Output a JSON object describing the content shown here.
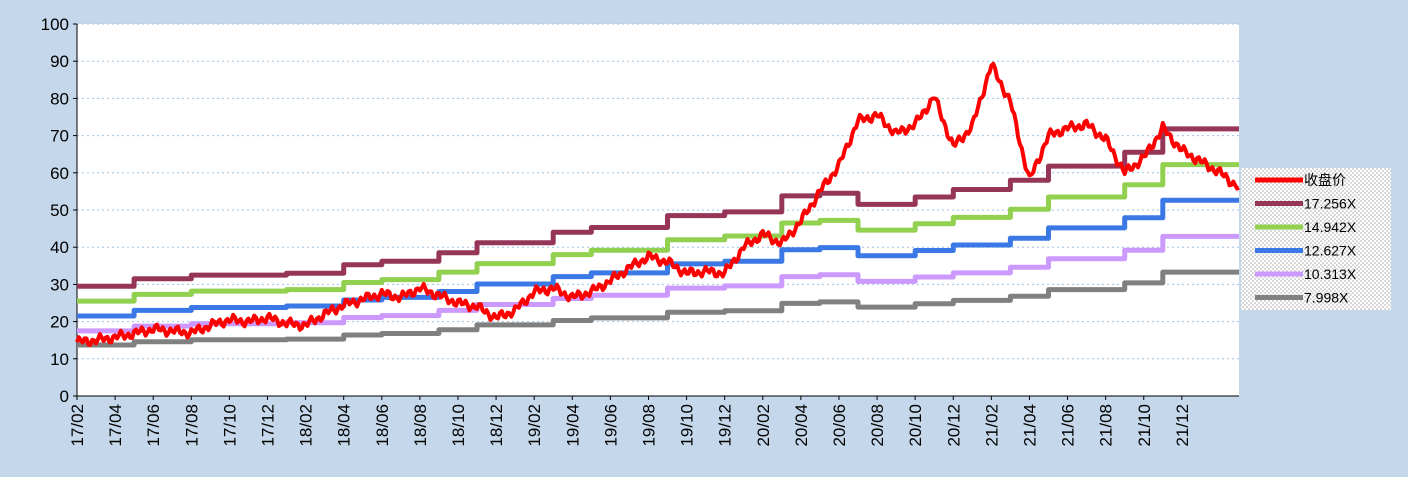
{
  "chart_data": {
    "type": "line",
    "title": "",
    "xlabel": "",
    "ylabel": "",
    "ylim": [
      0,
      100
    ],
    "y_ticks": [
      0,
      10,
      20,
      30,
      40,
      50,
      60,
      70,
      80,
      90,
      100
    ],
    "x_range": [
      "2017-02",
      "2022-03"
    ],
    "x_ticks": [
      "17/02",
      "17/04",
      "17/06",
      "17/08",
      "17/10",
      "17/12",
      "18/02",
      "18/04",
      "18/06",
      "18/08",
      "18/10",
      "18/12",
      "19/02",
      "19/04",
      "19/06",
      "19/08",
      "19/10",
      "19/12",
      "20/02",
      "20/04",
      "20/06",
      "20/08",
      "20/10",
      "20/12",
      "21/02",
      "21/04",
      "21/06",
      "21/08",
      "21/10",
      "21/12"
    ],
    "grid": "horizontal dotted",
    "legend_position": "right",
    "colors": {
      "background": "#c5d7ea",
      "plot_area": "#ffffff",
      "legend_box": "#dcdcdc"
    },
    "series": [
      {
        "name": "收盘价",
        "color": "#ff0000",
        "points": [
          [
            "17/02",
            14.5
          ],
          [
            "17/03",
            15.0
          ],
          [
            "17/04",
            15.8
          ],
          [
            "17/05",
            16.8
          ],
          [
            "17/06",
            18.0
          ],
          [
            "17/07",
            17.5
          ],
          [
            "17/08",
            17.0
          ],
          [
            "17/09",
            19.0
          ],
          [
            "17/10",
            20.5
          ],
          [
            "17/11",
            20.0
          ],
          [
            "17/12",
            21.0
          ],
          [
            "18/01",
            19.5
          ],
          [
            "18/02",
            19.0
          ],
          [
            "18/03",
            22.0
          ],
          [
            "18/04",
            24.5
          ],
          [
            "18/05",
            26.0
          ],
          [
            "18/06",
            27.5
          ],
          [
            "18/07",
            26.5
          ],
          [
            "18/08",
            29.0
          ],
          [
            "18/09",
            27.0
          ],
          [
            "18/10",
            25.0
          ],
          [
            "18/11",
            24.0
          ],
          [
            "18/12",
            21.0
          ],
          [
            "19/01",
            23.0
          ],
          [
            "19/02",
            28.0
          ],
          [
            "19/03",
            29.0
          ],
          [
            "19/04",
            26.5
          ],
          [
            "19/05",
            28.0
          ],
          [
            "19/06",
            31.0
          ],
          [
            "19/07",
            34.5
          ],
          [
            "19/08",
            37.5
          ],
          [
            "19/09",
            36.0
          ],
          [
            "19/10",
            33.0
          ],
          [
            "19/11",
            33.5
          ],
          [
            "19/12",
            33.0
          ],
          [
            "20/01",
            40.0
          ],
          [
            "20/02",
            43.5
          ],
          [
            "20/03",
            41.0
          ],
          [
            "20/04",
            47.0
          ],
          [
            "20/05",
            55.0
          ],
          [
            "20/06",
            62.0
          ],
          [
            "20/07",
            74.0
          ],
          [
            "20/08",
            75.5
          ],
          [
            "20/09",
            70.5
          ],
          [
            "20/10",
            73.0
          ],
          [
            "20/11",
            80.5
          ],
          [
            "20/12",
            67.0
          ],
          [
            "21/01",
            72.5
          ],
          [
            "21/02",
            89.0
          ],
          [
            "21/03",
            79.0
          ],
          [
            "21/04",
            58.0
          ],
          [
            "21/05",
            70.0
          ],
          [
            "21/06",
            72.0
          ],
          [
            "21/07",
            73.0
          ],
          [
            "21/08",
            69.0
          ],
          [
            "21/09",
            60.0
          ],
          [
            "21/10",
            64.0
          ],
          [
            "21/11",
            72.0
          ],
          [
            "21/12",
            66.0
          ],
          [
            "22/01",
            63.0
          ],
          [
            "22/02",
            60.0
          ],
          [
            "22/03",
            56.0
          ]
        ]
      },
      {
        "name": "17.256X",
        "color": "#953658",
        "points": [
          [
            "17/02",
            29.5
          ],
          [
            "17/05",
            31.5
          ],
          [
            "17/08",
            32.5
          ],
          [
            "18/01",
            33.0
          ],
          [
            "18/04",
            35.3
          ],
          [
            "18/06",
            36.2
          ],
          [
            "18/09",
            38.5
          ],
          [
            "18/11",
            41.2
          ],
          [
            "19/03",
            44.0
          ],
          [
            "19/05",
            45.3
          ],
          [
            "19/09",
            48.5
          ],
          [
            "19/12",
            49.5
          ],
          [
            "20/03",
            53.8
          ],
          [
            "20/05",
            54.5
          ],
          [
            "20/07",
            51.5
          ],
          [
            "20/10",
            53.5
          ],
          [
            "20/12",
            55.5
          ],
          [
            "21/03",
            58.0
          ],
          [
            "21/05",
            61.8
          ],
          [
            "21/09",
            65.5
          ],
          [
            "21/11",
            71.8
          ],
          [
            "22/03",
            71.8
          ]
        ]
      },
      {
        "name": "14.942X",
        "color": "#92d050",
        "points": [
          [
            "17/02",
            25.5
          ],
          [
            "17/05",
            27.3
          ],
          [
            "17/08",
            28.2
          ],
          [
            "18/01",
            28.6
          ],
          [
            "18/04",
            30.5
          ],
          [
            "18/06",
            31.3
          ],
          [
            "18/09",
            33.3
          ],
          [
            "18/11",
            35.6
          ],
          [
            "19/03",
            38.0
          ],
          [
            "19/05",
            39.2
          ],
          [
            "19/09",
            42.0
          ],
          [
            "19/12",
            43.0
          ],
          [
            "20/03",
            46.5
          ],
          [
            "20/05",
            47.2
          ],
          [
            "20/07",
            44.6
          ],
          [
            "20/10",
            46.3
          ],
          [
            "20/12",
            48.0
          ],
          [
            "21/03",
            50.2
          ],
          [
            "21/05",
            53.5
          ],
          [
            "21/09",
            56.8
          ],
          [
            "21/11",
            62.2
          ],
          [
            "22/03",
            62.2
          ]
        ]
      },
      {
        "name": "12.627X",
        "color": "#3a78e6",
        "points": [
          [
            "17/02",
            21.5
          ],
          [
            "17/05",
            23.0
          ],
          [
            "17/08",
            23.8
          ],
          [
            "18/01",
            24.2
          ],
          [
            "18/04",
            25.8
          ],
          [
            "18/06",
            26.5
          ],
          [
            "18/09",
            28.1
          ],
          [
            "18/11",
            30.1
          ],
          [
            "19/03",
            32.1
          ],
          [
            "19/05",
            33.1
          ],
          [
            "19/09",
            35.5
          ],
          [
            "19/12",
            36.2
          ],
          [
            "20/03",
            39.3
          ],
          [
            "20/05",
            39.9
          ],
          [
            "20/07",
            37.7
          ],
          [
            "20/10",
            39.1
          ],
          [
            "20/12",
            40.6
          ],
          [
            "21/03",
            42.4
          ],
          [
            "21/05",
            45.2
          ],
          [
            "21/09",
            47.9
          ],
          [
            "21/11",
            52.6
          ],
          [
            "22/03",
            52.6
          ]
        ]
      },
      {
        "name": "10.313X",
        "color": "#cc99ff",
        "points": [
          [
            "17/02",
            17.5
          ],
          [
            "17/05",
            18.8
          ],
          [
            "17/08",
            19.4
          ],
          [
            "18/01",
            19.7
          ],
          [
            "18/04",
            21.1
          ],
          [
            "18/06",
            21.6
          ],
          [
            "18/09",
            23.0
          ],
          [
            "18/11",
            24.6
          ],
          [
            "19/03",
            26.2
          ],
          [
            "19/05",
            27.1
          ],
          [
            "19/09",
            29.0
          ],
          [
            "19/12",
            29.6
          ],
          [
            "20/03",
            32.1
          ],
          [
            "20/05",
            32.6
          ],
          [
            "20/07",
            30.8
          ],
          [
            "20/10",
            32.0
          ],
          [
            "20/12",
            33.1
          ],
          [
            "21/03",
            34.6
          ],
          [
            "21/05",
            36.9
          ],
          [
            "21/09",
            39.2
          ],
          [
            "21/11",
            42.9
          ],
          [
            "22/03",
            42.9
          ]
        ]
      },
      {
        "name": "7.998X",
        "color": "#808080",
        "points": [
          [
            "17/02",
            13.7
          ],
          [
            "17/05",
            14.6
          ],
          [
            "17/08",
            15.1
          ],
          [
            "18/01",
            15.3
          ],
          [
            "18/04",
            16.4
          ],
          [
            "18/06",
            16.8
          ],
          [
            "18/09",
            17.8
          ],
          [
            "18/11",
            19.1
          ],
          [
            "19/03",
            20.3
          ],
          [
            "19/05",
            21.0
          ],
          [
            "19/09",
            22.5
          ],
          [
            "19/12",
            22.9
          ],
          [
            "20/03",
            24.9
          ],
          [
            "20/05",
            25.3
          ],
          [
            "20/07",
            23.9
          ],
          [
            "20/10",
            24.8
          ],
          [
            "20/12",
            25.7
          ],
          [
            "21/03",
            26.8
          ],
          [
            "21/05",
            28.6
          ],
          [
            "21/09",
            30.4
          ],
          [
            "21/11",
            33.3
          ],
          [
            "22/03",
            33.3
          ]
        ]
      }
    ]
  }
}
